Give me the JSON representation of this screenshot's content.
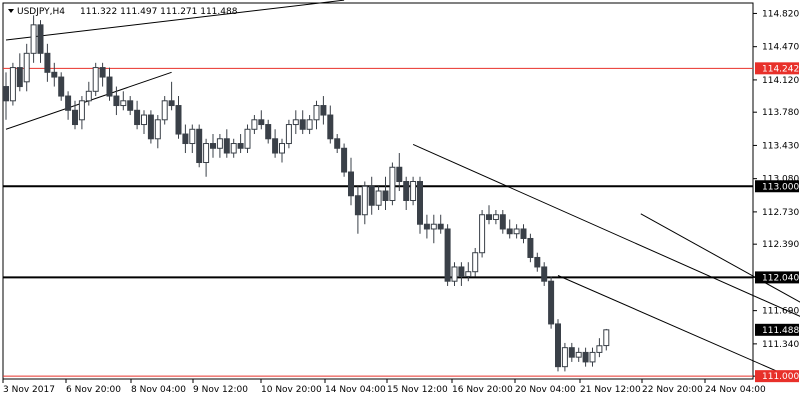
{
  "header": {
    "symbol": "USDJPY,H4",
    "ohlc": "111.322 111.497 111.271 111.488"
  },
  "chart_data": {
    "type": "candlestick",
    "ylim": [
      110.97,
      114.93
    ],
    "y_ticks": [
      "114.820",
      "114.470",
      "114.120",
      "113.780",
      "113.430",
      "113.080",
      "112.730",
      "112.390",
      "112.040",
      "111.690",
      "111.340",
      "111.000"
    ],
    "x_labels": [
      "3 Nov 2017",
      "6 Nov 20:00",
      "8 Nov 04:00",
      "9 Nov 12:00",
      "10 Nov 20:00",
      "14 Nov 04:00",
      "15 Nov 12:00",
      "16 Nov 20:00",
      "20 Nov 04:00",
      "21 Nov 12:00",
      "22 Nov 20:00",
      "24 Nov 04:00"
    ],
    "price_tags": [
      {
        "value": 114.242,
        "label": "114.242",
        "color": "#e8302a"
      },
      {
        "value": 113.0,
        "label": "113.000",
        "color": "#000000"
      },
      {
        "value": 112.04,
        "label": "112.040",
        "color": "#000000"
      },
      {
        "value": 111.488,
        "label": "111.488",
        "color": "#000000"
      },
      {
        "value": 111.0,
        "label": "111.000",
        "color": "#e8302a"
      }
    ],
    "horizontal_levels": [
      {
        "value": 114.242,
        "color": "#e8302a",
        "width": 1
      },
      {
        "value": 113.0,
        "color": "#000000",
        "width": 2
      },
      {
        "value": 112.04,
        "color": "#000000",
        "width": 2
      },
      {
        "value": 111.0,
        "color": "#e8302a",
        "width": 1
      }
    ],
    "trend_lines": [
      {
        "from": [
          0,
          114.54
        ],
        "to": [
          49,
          114.96
        ]
      },
      {
        "from": [
          0,
          113.6
        ],
        "to": [
          24,
          114.2
        ]
      },
      {
        "from": [
          59,
          113.44
        ],
        "to": [
          116,
          111.6
        ]
      },
      {
        "from": [
          80,
          112.06
        ],
        "to": [
          114,
          110.98
        ]
      },
      {
        "from": [
          92,
          112.71
        ],
        "to": [
          125,
          111.38
        ]
      }
    ],
    "candles": [
      [
        114.05,
        114.2,
        113.7,
        113.9
      ],
      [
        113.9,
        114.3,
        113.85,
        114.25
      ],
      [
        114.25,
        114.4,
        114.0,
        114.05
      ],
      [
        114.1,
        114.5,
        114.0,
        114.4
      ],
      [
        114.4,
        114.8,
        114.3,
        114.7
      ],
      [
        114.7,
        114.75,
        114.3,
        114.4
      ],
      [
        114.4,
        114.5,
        114.1,
        114.2
      ],
      [
        114.2,
        114.3,
        114.05,
        114.15
      ],
      [
        114.15,
        114.2,
        113.9,
        113.95
      ],
      [
        113.95,
        114.0,
        113.7,
        113.8
      ],
      [
        113.8,
        113.9,
        113.6,
        113.65
      ],
      [
        113.7,
        113.95,
        113.6,
        113.9
      ],
      [
        113.9,
        114.1,
        113.85,
        114.0
      ],
      [
        114.0,
        114.3,
        113.95,
        114.25
      ],
      [
        114.25,
        114.3,
        114.05,
        114.15
      ],
      [
        114.15,
        114.25,
        113.9,
        113.95
      ],
      [
        113.95,
        114.05,
        113.75,
        113.85
      ],
      [
        113.85,
        114.0,
        113.8,
        113.9
      ],
      [
        113.9,
        113.95,
        113.75,
        113.8
      ],
      [
        113.8,
        113.9,
        113.6,
        113.65
      ],
      [
        113.65,
        113.8,
        113.55,
        113.75
      ],
      [
        113.75,
        113.8,
        113.45,
        113.5
      ],
      [
        113.5,
        113.75,
        113.4,
        113.7
      ],
      [
        113.7,
        113.95,
        113.65,
        113.9
      ],
      [
        113.9,
        114.1,
        113.8,
        113.85
      ],
      [
        113.85,
        113.95,
        113.5,
        113.55
      ],
      [
        113.55,
        113.65,
        113.35,
        113.45
      ],
      [
        113.45,
        113.65,
        113.35,
        113.6
      ],
      [
        113.6,
        113.65,
        113.2,
        113.25
      ],
      [
        113.25,
        113.5,
        113.1,
        113.45
      ],
      [
        113.45,
        113.55,
        113.3,
        113.4
      ],
      [
        113.4,
        113.55,
        113.3,
        113.5
      ],
      [
        113.5,
        113.6,
        113.3,
        113.35
      ],
      [
        113.35,
        113.5,
        113.3,
        113.45
      ],
      [
        113.45,
        113.55,
        113.35,
        113.4
      ],
      [
        113.4,
        113.65,
        113.35,
        113.6
      ],
      [
        113.6,
        113.75,
        113.55,
        113.7
      ],
      [
        113.7,
        113.8,
        113.6,
        113.65
      ],
      [
        113.65,
        113.7,
        113.45,
        113.5
      ],
      [
        113.5,
        113.6,
        113.3,
        113.35
      ],
      [
        113.35,
        113.5,
        113.25,
        113.45
      ],
      [
        113.45,
        113.7,
        113.4,
        113.65
      ],
      [
        113.65,
        113.8,
        113.55,
        113.7
      ],
      [
        113.7,
        113.8,
        113.55,
        113.6
      ],
      [
        113.6,
        113.75,
        113.55,
        113.7
      ],
      [
        113.7,
        113.9,
        113.6,
        113.85
      ],
      [
        113.85,
        113.95,
        113.65,
        113.75
      ],
      [
        113.75,
        113.85,
        113.45,
        113.5
      ],
      [
        113.5,
        113.55,
        113.35,
        113.4
      ],
      [
        113.4,
        113.45,
        113.1,
        113.15
      ],
      [
        113.15,
        113.3,
        112.8,
        112.9
      ],
      [
        112.9,
        113.0,
        112.5,
        112.7
      ],
      [
        112.7,
        113.05,
        112.6,
        113.0
      ],
      [
        113.0,
        113.1,
        112.7,
        112.8
      ],
      [
        112.8,
        113.0,
        112.75,
        112.95
      ],
      [
        112.95,
        113.1,
        112.75,
        112.85
      ],
      [
        112.85,
        113.25,
        112.8,
        113.2
      ],
      [
        113.2,
        113.35,
        112.95,
        113.05
      ],
      [
        113.05,
        113.1,
        112.75,
        112.85
      ],
      [
        112.85,
        113.1,
        112.8,
        113.05
      ],
      [
        113.05,
        113.1,
        112.5,
        112.6
      ],
      [
        112.6,
        112.7,
        112.45,
        112.55
      ],
      [
        112.55,
        112.7,
        112.4,
        112.6
      ],
      [
        112.6,
        112.7,
        112.5,
        112.55
      ],
      [
        112.55,
        112.6,
        111.95,
        112.0
      ],
      [
        112.0,
        112.2,
        111.95,
        112.15
      ],
      [
        112.15,
        112.2,
        111.95,
        112.05
      ],
      [
        112.05,
        112.2,
        112.0,
        112.1
      ],
      [
        112.1,
        112.35,
        112.05,
        112.3
      ],
      [
        112.3,
        112.75,
        112.25,
        112.7
      ],
      [
        112.7,
        112.8,
        112.6,
        112.65
      ],
      [
        112.65,
        112.75,
        112.6,
        112.7
      ],
      [
        112.7,
        112.75,
        112.5,
        112.55
      ],
      [
        112.55,
        112.65,
        112.45,
        112.5
      ],
      [
        112.5,
        112.6,
        112.45,
        112.55
      ],
      [
        112.55,
        112.6,
        112.4,
        112.45
      ],
      [
        112.45,
        112.5,
        112.2,
        112.25
      ],
      [
        112.25,
        112.3,
        112.1,
        112.15
      ],
      [
        112.15,
        112.2,
        111.95,
        112.0
      ],
      [
        112.0,
        112.05,
        111.5,
        111.55
      ],
      [
        111.55,
        111.6,
        111.05,
        111.1
      ],
      [
        111.1,
        111.35,
        111.05,
        111.3
      ],
      [
        111.3,
        111.35,
        111.15,
        111.2
      ],
      [
        111.2,
        111.3,
        111.15,
        111.25
      ],
      [
        111.25,
        111.3,
        111.1,
        111.15
      ],
      [
        111.15,
        111.3,
        111.1,
        111.25
      ],
      [
        111.25,
        111.4,
        111.2,
        111.32
      ],
      [
        111.322,
        111.497,
        111.271,
        111.488
      ]
    ]
  }
}
